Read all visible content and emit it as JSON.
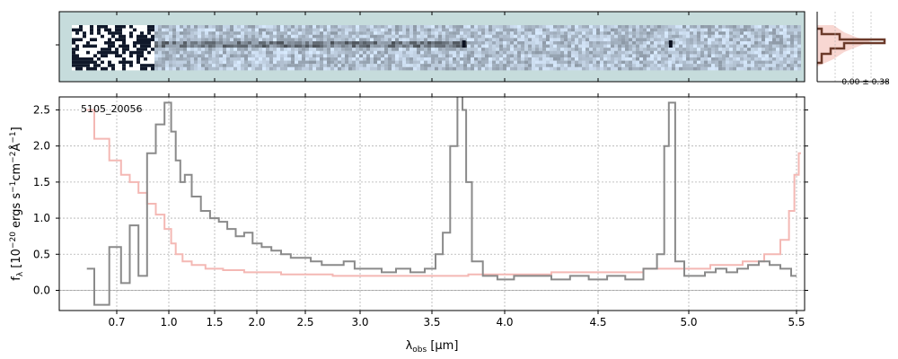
{
  "chart_data": {
    "type": "line",
    "object_label": "5105_20056",
    "xlabel": "λobs [μm]",
    "ylabel": "fλ [10^-20 ergs s^-1 cm^-2 Å^-1]",
    "xlim": [
      0.55,
      5.52
    ],
    "ylim": [
      -0.28,
      2.68
    ],
    "xscale": "nonlinear (wavelength axis stretched at short wavelengths)",
    "xticks": [
      0.7,
      1.0,
      1.5,
      2.0,
      2.5,
      3.0,
      3.5,
      4.0,
      4.5,
      5.0,
      5.5
    ],
    "xtick_labels": [
      "0.7",
      "1.0",
      "1.5",
      "2.0",
      "2.5",
      "3.0",
      "3.5",
      "4.0",
      "4.5",
      "5.0",
      "5.5"
    ],
    "yticks": [
      0.0,
      0.5,
      1.0,
      1.5,
      2.0,
      2.5
    ],
    "ytick_labels": [
      "0.0",
      "0.5",
      "1.0",
      "1.5",
      "2.0",
      "2.5"
    ],
    "grid": true,
    "series": [
      {
        "role": "flux",
        "color": "#8a8a8a",
        "x": [
          0.6,
          0.65,
          0.7,
          0.75,
          0.8,
          0.85,
          0.9,
          0.95,
          1.0,
          1.05,
          1.1,
          1.15,
          1.2,
          1.3,
          1.4,
          1.5,
          1.6,
          1.7,
          1.8,
          1.9,
          2.0,
          2.1,
          2.2,
          2.3,
          2.4,
          2.5,
          2.6,
          2.7,
          2.8,
          2.9,
          3.0,
          3.1,
          3.2,
          3.3,
          3.4,
          3.5,
          3.55,
          3.6,
          3.65,
          3.7,
          3.72,
          3.75,
          3.8,
          3.9,
          4.0,
          4.1,
          4.2,
          4.3,
          4.4,
          4.5,
          4.6,
          4.7,
          4.8,
          4.85,
          4.88,
          4.9,
          4.95,
          5.0,
          5.05,
          5.1,
          5.15,
          5.2,
          5.25,
          5.3,
          5.35,
          5.4,
          5.45,
          5.5
        ],
        "y": [
          0.3,
          -0.2,
          0.6,
          0.1,
          0.9,
          0.2,
          1.9,
          2.3,
          2.6,
          2.2,
          1.8,
          1.5,
          1.6,
          1.3,
          1.1,
          1.0,
          0.95,
          0.85,
          0.75,
          0.8,
          0.65,
          0.6,
          0.55,
          0.5,
          0.45,
          0.45,
          0.4,
          0.35,
          0.35,
          0.4,
          0.3,
          0.3,
          0.25,
          0.3,
          0.25,
          0.3,
          0.5,
          0.8,
          2.0,
          2.7,
          2.5,
          1.5,
          0.4,
          0.2,
          0.15,
          0.2,
          0.2,
          0.15,
          0.2,
          0.15,
          0.2,
          0.15,
          0.3,
          0.5,
          2.0,
          2.6,
          0.4,
          0.2,
          0.2,
          0.25,
          0.3,
          0.25,
          0.3,
          0.35,
          0.4,
          0.35,
          0.3,
          0.2
        ]
      },
      {
        "role": "uncertainty",
        "color": "#f4b8b4",
        "x": [
          0.6,
          0.65,
          0.7,
          0.75,
          0.8,
          0.85,
          0.9,
          0.95,
          1.0,
          1.05,
          1.1,
          1.2,
          1.3,
          1.5,
          1.7,
          2.0,
          2.5,
          3.0,
          3.5,
          4.0,
          4.5,
          5.0,
          5.2,
          5.3,
          5.4,
          5.45,
          5.48,
          5.5,
          5.52
        ],
        "y": [
          2.5,
          2.1,
          1.8,
          1.6,
          1.5,
          1.35,
          1.2,
          1.05,
          0.85,
          0.65,
          0.5,
          0.4,
          0.35,
          0.3,
          0.28,
          0.25,
          0.22,
          0.2,
          0.2,
          0.22,
          0.25,
          0.3,
          0.35,
          0.4,
          0.5,
          0.7,
          1.1,
          1.6,
          1.9
        ]
      }
    ],
    "spectrum2d_panel": {
      "colormap": "white to dark slate blue",
      "background": "#c6dcdc"
    },
    "histogram_panel": {
      "label": "0.00 ± 0.38",
      "hist_color": "#6b3a2a",
      "fill_color": "#f8d7d2"
    }
  }
}
